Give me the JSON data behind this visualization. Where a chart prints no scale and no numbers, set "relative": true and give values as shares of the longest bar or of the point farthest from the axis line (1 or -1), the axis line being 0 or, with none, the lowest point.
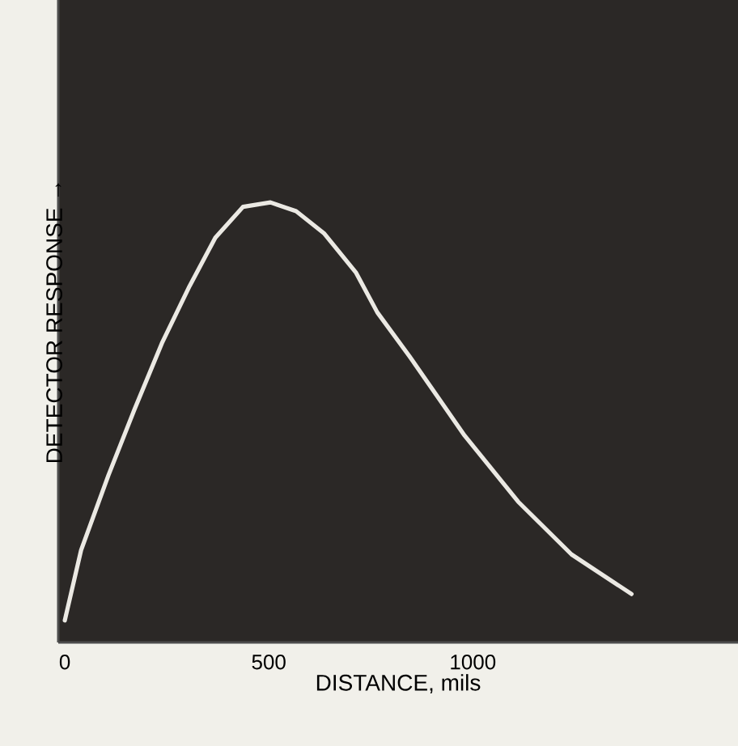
{
  "chart_data": {
    "type": "line",
    "relative": true,
    "xlabel": "DISTANCE, mils",
    "ylabel": "DETECTOR RESPONSE →",
    "xlim": [
      -16,
      1650
    ],
    "xticks": [
      0,
      500,
      1000
    ],
    "grid": false,
    "marker": "none",
    "line_style": "solid",
    "series": [
      {
        "color": "#ebe9e3",
        "x": [
          0,
          40,
          107,
          171,
          238,
          306,
          369,
          437,
          504,
          567,
          635,
          714,
          766,
          845,
          980,
          1111,
          1242,
          1389
        ],
        "values": [
          0.05,
          0.21,
          0.38,
          0.53,
          0.68,
          0.81,
          0.92,
          0.99,
          1.0,
          0.98,
          0.93,
          0.84,
          0.75,
          0.65,
          0.47,
          0.32,
          0.2,
          0.11
        ]
      }
    ]
  }
}
